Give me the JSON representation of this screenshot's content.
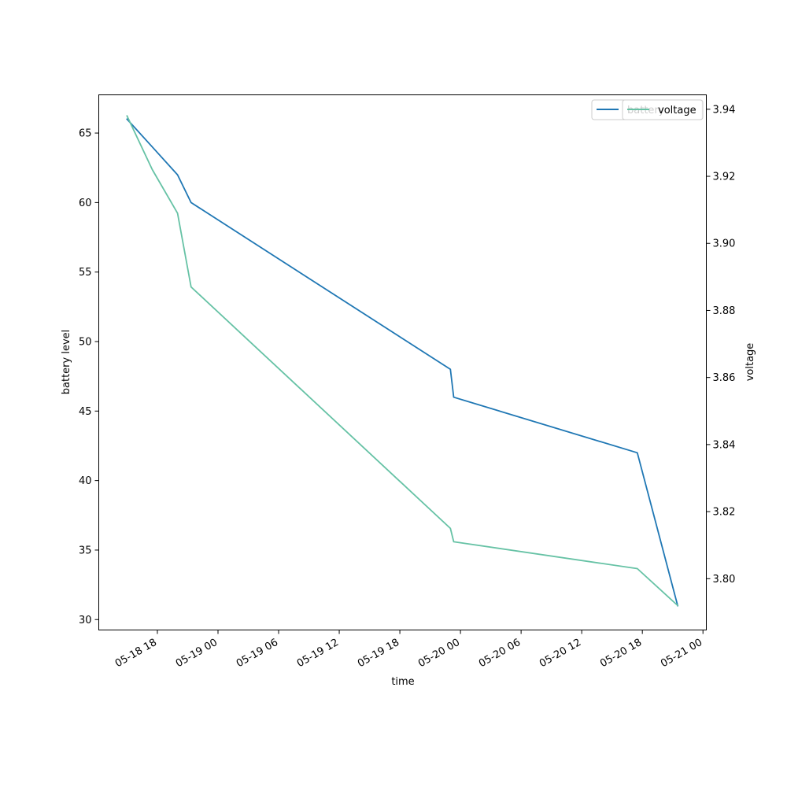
{
  "chart_data": {
    "type": "line",
    "title": "",
    "xlabel": "time",
    "ylabel_left": "battery level",
    "ylabel_right": "voltage",
    "x_ticks": [
      "05-18 18",
      "05-19 00",
      "05-19 06",
      "05-19 12",
      "05-19 18",
      "05-20 00",
      "05-20 06",
      "05-20 12",
      "05-20 18",
      "05-21 00"
    ],
    "x_tick_times": [
      "2024-05-18T18:00",
      "2024-05-19T00:00",
      "2024-05-19T06:00",
      "2024-05-19T12:00",
      "2024-05-19T18:00",
      "2024-05-20T00:00",
      "2024-05-20T06:00",
      "2024-05-20T12:00",
      "2024-05-20T18:00",
      "2024-05-21T00:00"
    ],
    "xlim": [
      "2024-05-18T12:12",
      "2024-05-21T00:20"
    ],
    "left_yticks": [
      30,
      35,
      40,
      45,
      50,
      55,
      60,
      65
    ],
    "left_ylim": [
      29.25,
      67.75
    ],
    "right_yticks": [
      "3.80",
      "3.82",
      "3.84",
      "3.86",
      "3.88",
      "3.90",
      "3.92",
      "3.94"
    ],
    "right_ylim": [
      3.7847,
      3.9443
    ],
    "legend_placement": "top-right",
    "series": [
      {
        "name": "battery",
        "axis": "left",
        "color": "#1f77b4",
        "x": [
          "2024-05-18T15:00",
          "2024-05-18T17:30",
          "2024-05-18T20:00",
          "2024-05-18T21:20",
          "2024-05-19T23:00",
          "2024-05-19T23:20",
          "2024-05-20T17:30",
          "2024-05-20T21:30"
        ],
        "values": [
          66,
          64,
          62,
          60,
          48,
          46,
          42,
          31
        ]
      },
      {
        "name": "voltage",
        "axis": "right",
        "color": "#66c2a5",
        "x": [
          "2024-05-18T15:00",
          "2024-05-18T17:30",
          "2024-05-18T20:00",
          "2024-05-18T21:20",
          "2024-05-19T23:00",
          "2024-05-19T23:20",
          "2024-05-20T17:30",
          "2024-05-20T21:30"
        ],
        "values": [
          3.938,
          3.922,
          3.909,
          3.887,
          3.815,
          3.811,
          3.803,
          3.792
        ]
      }
    ]
  }
}
